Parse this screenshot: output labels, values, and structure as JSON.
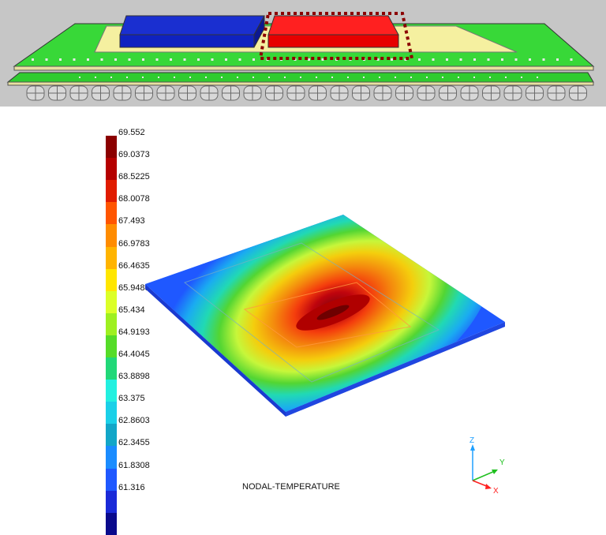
{
  "legend": {
    "labels": [
      "69.552",
      "69.0373",
      "68.5225",
      "68.0078",
      "67.493",
      "66.9783",
      "66.4635",
      "65.9488",
      "65.434",
      "64.9193",
      "64.4045",
      "63.8898",
      "63.375",
      "62.8603",
      "62.3455",
      "61.8308",
      "61.316"
    ],
    "colors": [
      "#8b0000",
      "#b50000",
      "#e01b00",
      "#ff5500",
      "#ff8c00",
      "#ffb400",
      "#ffe600",
      "#dcff28",
      "#9ef020",
      "#55dc28",
      "#21d878",
      "#22f0e0",
      "#1ad0e8",
      "#12a6c8",
      "#1a8cff",
      "#1f58ff",
      "#1a2ad8",
      "#0a0a8c"
    ]
  },
  "caption": "NODAL-TEMPERATURE",
  "axes": {
    "z": "Z",
    "y": "Y",
    "x": "X"
  }
}
